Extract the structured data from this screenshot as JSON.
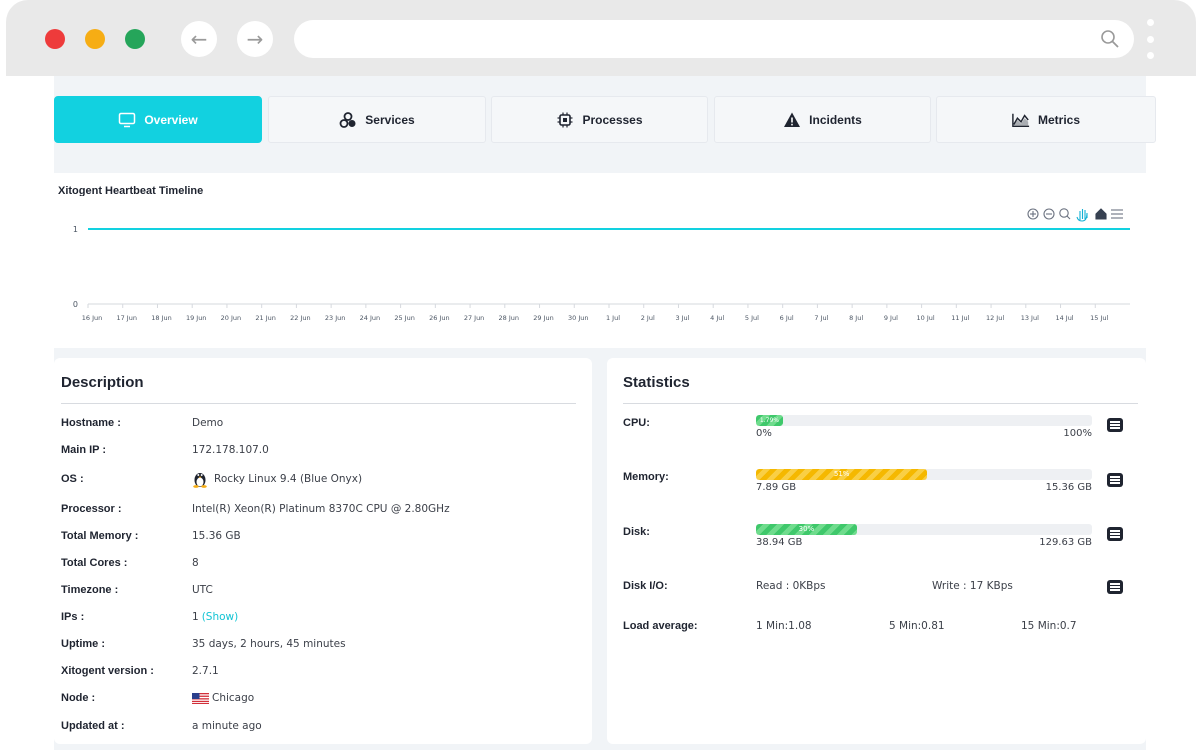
{
  "browser": {
    "back_icon": "arrow-left-icon",
    "forward_icon": "arrow-right-icon",
    "url": "",
    "search_icon": "search-icon"
  },
  "tabs": [
    {
      "label": "Overview",
      "icon": "monitor-icon",
      "active": true
    },
    {
      "label": "Services",
      "icon": "services-icon",
      "active": false
    },
    {
      "label": "Processes",
      "icon": "chip-icon",
      "active": false
    },
    {
      "label": "Incidents",
      "icon": "warning-icon",
      "active": false
    },
    {
      "label": "Metrics",
      "icon": "area-chart-icon",
      "active": false
    }
  ],
  "timeline": {
    "title": "Xitogent Heartbeat Timeline",
    "toolbar_icons": [
      "zoom-in-icon",
      "zoom-out-icon",
      "zoom-select-icon",
      "pan-icon",
      "home-icon",
      "menu-icon"
    ],
    "accent": "#12d1e0"
  },
  "chart_data": {
    "type": "line",
    "title": "Xitogent Heartbeat Timeline",
    "x": [
      "16 Jun",
      "17 Jun",
      "18 Jun",
      "19 Jun",
      "20 Jun",
      "21 Jun",
      "22 Jun",
      "23 Jun",
      "24 Jun",
      "25 Jun",
      "26 Jun",
      "27 Jun",
      "28 Jun",
      "29 Jun",
      "30 Jun",
      "1 Jul",
      "2 Jul",
      "3 Jul",
      "4 Jul",
      "5 Jul",
      "6 Jul",
      "7 Jul",
      "8 Jul",
      "9 Jul",
      "10 Jul",
      "11 Jul",
      "12 Jul",
      "13 Jul",
      "14 Jul",
      "15 Jul"
    ],
    "series": [
      {
        "values": [
          1,
          1,
          1,
          1,
          1,
          1,
          1,
          1,
          1,
          1,
          1,
          1,
          1,
          1,
          1,
          1,
          1,
          1,
          1,
          1,
          1,
          1,
          1,
          1,
          1,
          1,
          1,
          1,
          1,
          1
        ]
      }
    ],
    "yticks": [
      "0",
      "1"
    ],
    "ylim": [
      0,
      1
    ],
    "grid": false,
    "color": "#12d1e0"
  },
  "description": {
    "title": "Description",
    "rows": [
      {
        "label": "Hostname :",
        "value": "Demo"
      },
      {
        "label": "Main IP :",
        "value": "172.178.107.0"
      },
      {
        "label": "OS :",
        "value": "Rocky Linux 9.4 (Blue Onyx)",
        "icon": "linux-penguin-icon"
      },
      {
        "label": "Processor :",
        "value": "Intel(R) Xeon(R) Platinum 8370C CPU @ 2.80GHz"
      },
      {
        "label": "Total Memory :",
        "value": "15.36 GB"
      },
      {
        "label": "Total Cores :",
        "value": "8"
      },
      {
        "label": "Timezone :",
        "value": "UTC"
      },
      {
        "label": "IPs :",
        "value": "1",
        "link": "(Show)"
      },
      {
        "label": "Uptime :",
        "value": "35 days, 2 hours, 45 minutes"
      },
      {
        "label": "Xitogent version :",
        "value": "2.7.1"
      },
      {
        "label": "Node :",
        "value": "Chicago",
        "icon": "us-flag-icon"
      },
      {
        "label": "Updated at :",
        "value": "a minute ago"
      }
    ]
  },
  "statistics": {
    "title": "Statistics",
    "cpu": {
      "label": "CPU:",
      "percent_label": "1.79%",
      "fraction": 0.0179,
      "min": "0%",
      "max": "100%"
    },
    "memory": {
      "label": "Memory:",
      "percent_label": "51%",
      "fraction": 0.51,
      "min": "7.89 GB",
      "max": "15.36 GB"
    },
    "disk": {
      "label": "Disk:",
      "percent_label": "30%",
      "fraction": 0.3,
      "min": "38.94 GB",
      "max": "129.63 GB"
    },
    "disk_io": {
      "label": "Disk I/O:",
      "read": "Read : 0KBps",
      "write": "Write : 17 KBps"
    },
    "load": {
      "label": "Load average:",
      "m1": "1 Min:1.08",
      "m5": "5 Min:0.81",
      "m15": "15 Min:0.7"
    },
    "details_icon": "list-icon"
  }
}
